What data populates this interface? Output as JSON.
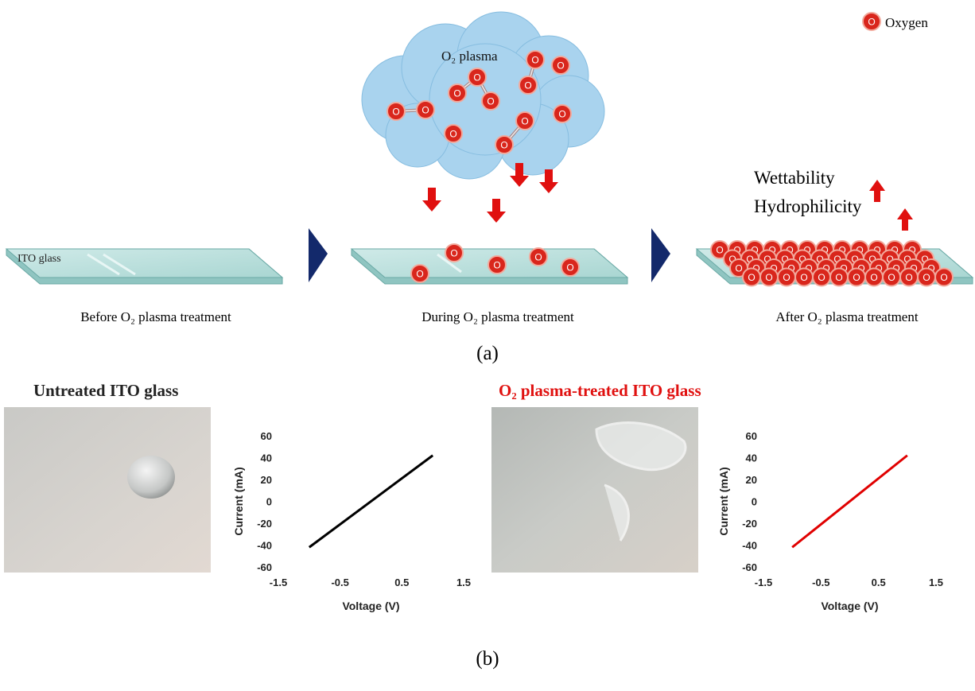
{
  "legend": {
    "label": "Oxygen"
  },
  "atom_label": "O",
  "cloud_label": "O₂ plasma",
  "glass_label": "ITO glass",
  "steps": [
    "Before O₂ plasma treatment",
    "During O₂ plasma treatment",
    "After O₂ plasma treatment"
  ],
  "effects": [
    "Wettability",
    "Hydrophilicity"
  ],
  "panel_a": "(a)",
  "panel_b": "(b)",
  "photo_titles": [
    "Untreated ITO glass",
    "O₂ plasma-treated ITO glass"
  ],
  "chart_data": [
    {
      "type": "line",
      "x": [
        -1,
        1
      ],
      "xlabel": "Voltage (V)",
      "ylabel": "Current (mA)",
      "xlim": [
        -1.5,
        1.5
      ],
      "xticks": [
        -1.5,
        -0.5,
        0.5,
        1.5
      ],
      "ylim": [
        -60,
        60
      ],
      "yticks": [
        -60,
        -40,
        -20,
        0,
        20,
        40,
        60
      ],
      "series": [
        {
          "color": "#000000",
          "values": [
            -42,
            42
          ]
        }
      ]
    },
    {
      "type": "line",
      "x": [
        -1,
        1
      ],
      "xlabel": "Voltage (V)",
      "ylabel": "Current (mA)",
      "xlim": [
        -1.5,
        1.5
      ],
      "xticks": [
        -1.5,
        -0.5,
        0.5,
        1.5
      ],
      "ylim": [
        -60,
        60
      ],
      "yticks": [
        -60,
        -40,
        -20,
        0,
        20,
        40,
        60
      ],
      "series": [
        {
          "color": "#e00000",
          "values": [
            -42,
            42
          ]
        }
      ]
    }
  ]
}
